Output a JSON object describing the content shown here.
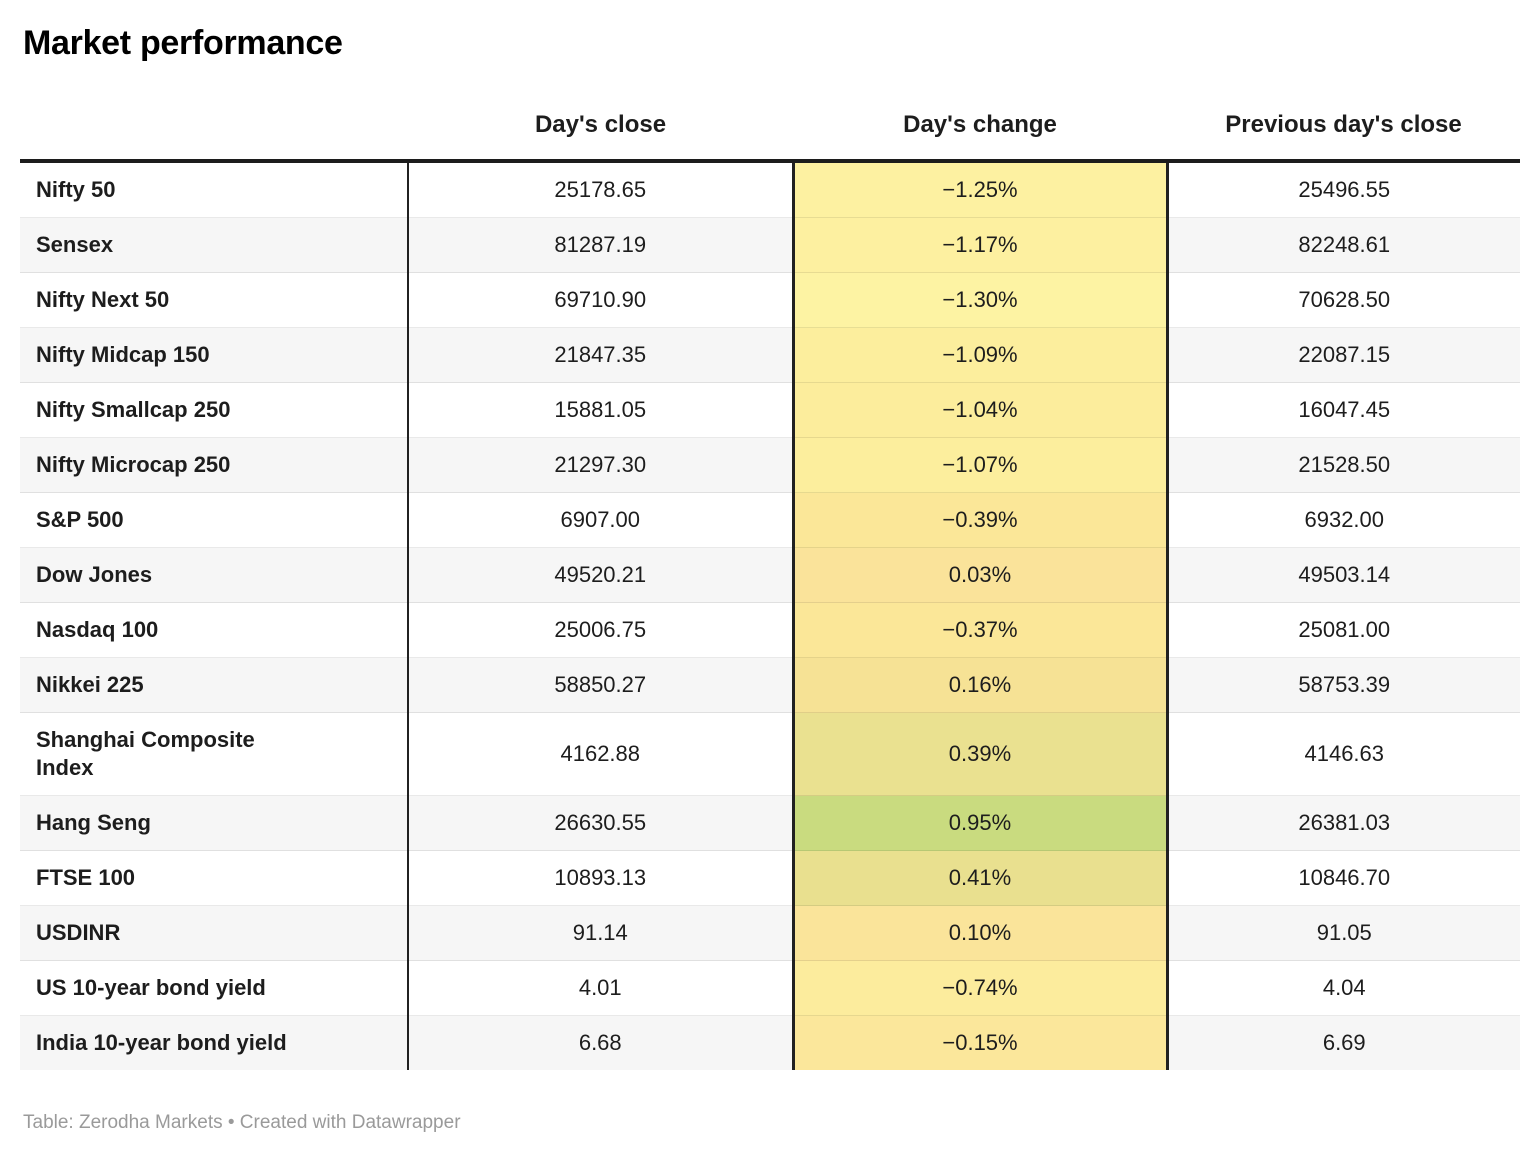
{
  "title": "Market performance",
  "chart_data": {
    "type": "table",
    "title": "Market performance",
    "columns": [
      "",
      "Day's close",
      "Day's change",
      "Previous day's close"
    ],
    "heatmap_column": "Day's change",
    "heatmap_scale": {
      "low_color": "#fdf3a3",
      "mid_color": "#fae39a",
      "high_color": "#c9db7f"
    },
    "rows": [
      {
        "label": "Nifty 50",
        "close": "25178.65",
        "change": "−1.25%",
        "change_value": -1.25,
        "change_bg": "#fdf1a1",
        "prev": "25496.55"
      },
      {
        "label": "Sensex",
        "close": "81287.19",
        "change": "−1.17%",
        "change_value": -1.17,
        "change_bg": "#fdf0a0",
        "prev": "82248.61"
      },
      {
        "label": "Nifty Next 50",
        "close": "69710.90",
        "change": "−1.30%",
        "change_value": -1.3,
        "change_bg": "#fdf3a3",
        "prev": "70628.50"
      },
      {
        "label": "Nifty Midcap 150",
        "close": "21847.35",
        "change": "−1.09%",
        "change_value": -1.09,
        "change_bg": "#fcee9d",
        "prev": "22087.15"
      },
      {
        "label": "Nifty Smallcap 250",
        "close": "15881.05",
        "change": "−1.04%",
        "change_value": -1.04,
        "change_bg": "#fced9c",
        "prev": "16047.45"
      },
      {
        "label": "Nifty Microcap 250",
        "close": "21297.30",
        "change": "−1.07%",
        "change_value": -1.07,
        "change_bg": "#fcee9d",
        "prev": "21528.50"
      },
      {
        "label": "S&P 500",
        "close": "6907.00",
        "change": "−0.39%",
        "change_value": -0.39,
        "change_bg": "#fbe798",
        "prev": "6932.00"
      },
      {
        "label": "Dow Jones",
        "close": "49520.21",
        "change": "0.03%",
        "change_value": 0.03,
        "change_bg": "#fae39a",
        "prev": "49503.14"
      },
      {
        "label": "Nasdaq 100",
        "close": "25006.75",
        "change": "−0.37%",
        "change_value": -0.37,
        "change_bg": "#fbe798",
        "prev": "25081.00"
      },
      {
        "label": "Nikkei 225",
        "close": "58850.27",
        "change": "0.16%",
        "change_value": 0.16,
        "change_bg": "#f6e295",
        "prev": "58753.39"
      },
      {
        "label": "Shanghai Composite\nIndex",
        "close": "4162.88",
        "change": "0.39%",
        "change_value": 0.39,
        "change_bg": "#eae190",
        "prev": "4146.63"
      },
      {
        "label": "Hang Seng",
        "close": "26630.55",
        "change": "0.95%",
        "change_value": 0.95,
        "change_bg": "#c9db7f",
        "prev": "26381.03"
      },
      {
        "label": "FTSE 100",
        "close": "10893.13",
        "change": "0.41%",
        "change_value": 0.41,
        "change_bg": "#e9e08f",
        "prev": "10846.70"
      },
      {
        "label": "USDINR",
        "close": "91.14",
        "change": "0.10%",
        "change_value": 0.1,
        "change_bg": "#fae49a",
        "prev": "91.05"
      },
      {
        "label": "US 10-year bond yield",
        "close": "4.01",
        "change": "−0.74%",
        "change_value": -0.74,
        "change_bg": "#fcec9d",
        "prev": "4.04"
      },
      {
        "label": "India 10-year bond yield",
        "close": "6.68",
        "change": "−0.15%",
        "change_value": -0.15,
        "change_bg": "#fbe79b",
        "prev": "6.69"
      }
    ]
  },
  "footer": "Table: Zerodha Markets • Created with Datawrapper"
}
